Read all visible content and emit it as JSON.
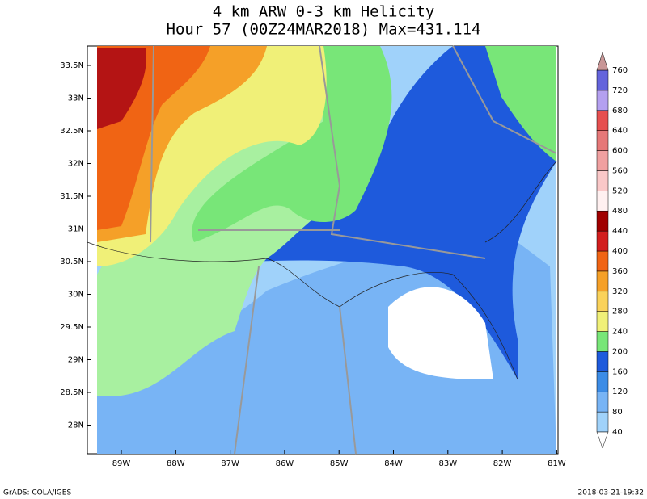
{
  "title": "4 km ARW 0-3 km Helicity",
  "subtitle": "Hour 57 (00Z24MAR2018) Max=431.114",
  "lat_labels": [
    "33.5N",
    "33N",
    "32.5N",
    "32N",
    "31.5N",
    "31N",
    "30.5N",
    "30N",
    "29.5N",
    "29N",
    "28.5N",
    "28N"
  ],
  "lon_labels": [
    "89W",
    "88W",
    "87W",
    "86W",
    "85W",
    "84W",
    "83W",
    "82W",
    "81W"
  ],
  "colorbar": {
    "levels": [
      40,
      80,
      120,
      160,
      200,
      240,
      280,
      320,
      360,
      400,
      440,
      480,
      520,
      560,
      600,
      640,
      680,
      720,
      760
    ],
    "colors": [
      "#a0d2fa",
      "#78b4f5",
      "#3c8ce6",
      "#1e5adc",
      "#78e678",
      "#f0f078",
      "#fad25a",
      "#f5a028",
      "#f06414",
      "#d21e1e",
      "#a00000",
      "#fff0f0",
      "#fac8c8",
      "#f0a0a0",
      "#e67878",
      "#e65050",
      "#b4a0f0",
      "#6464dc"
    ],
    "under_color": "#ffffff",
    "over_color": "#c89696"
  },
  "footer_left": "GrADS: COLA/IGES",
  "footer_right": "2018-03-21-19:32"
}
